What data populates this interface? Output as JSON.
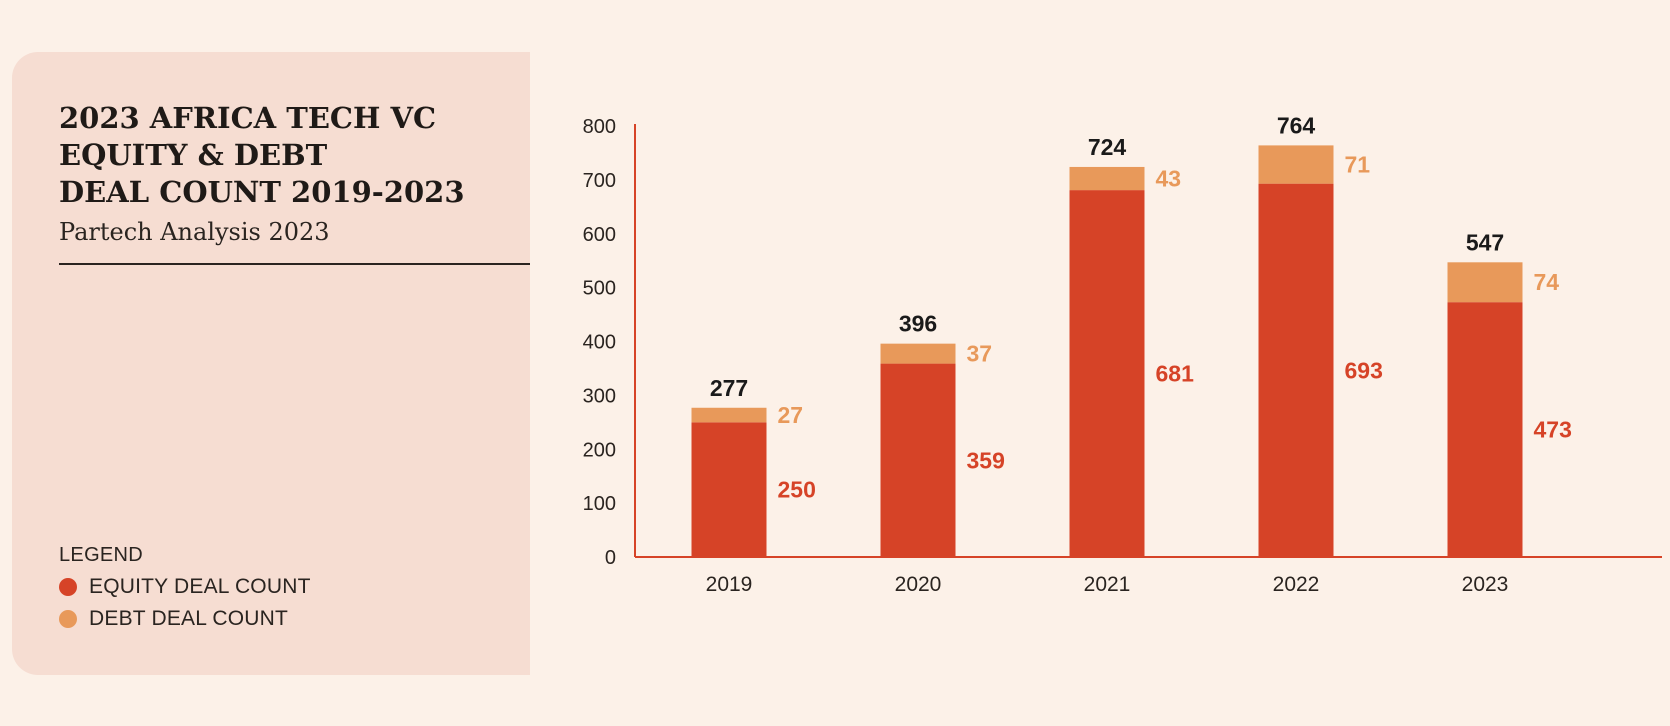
{
  "title_lines": [
    "2023 AFRICA TECH VC",
    "EQUITY & DEBT",
    "DEAL COUNT 2019-2023"
  ],
  "subtitle": "Partech Analysis 2023",
  "legend": {
    "title": "LEGEND",
    "items": [
      {
        "label": "EQUITY DEAL COUNT",
        "color": "#d64327"
      },
      {
        "label": "DEBT DEAL COUNT",
        "color": "#e8995a"
      }
    ]
  },
  "colors": {
    "equity": "#d64327",
    "debt": "#e8995a",
    "total_label": "#1a1a1a",
    "axis": "#d64327",
    "tick_label": "#2a2420"
  },
  "chart_data": {
    "type": "bar",
    "stacked": true,
    "categories": [
      "2019",
      "2020",
      "2021",
      "2022",
      "2023"
    ],
    "series": [
      {
        "name": "EQUITY DEAL COUNT",
        "values": [
          250,
          359,
          681,
          693,
          473
        ]
      },
      {
        "name": "DEBT DEAL COUNT",
        "values": [
          27,
          37,
          43,
          71,
          74
        ]
      }
    ],
    "totals": [
      277,
      396,
      724,
      764,
      547
    ],
    "ylim": [
      0,
      800
    ],
    "yticks": [
      0,
      100,
      200,
      300,
      400,
      500,
      600,
      700,
      800
    ],
    "grid": false,
    "legend_position": "left"
  }
}
